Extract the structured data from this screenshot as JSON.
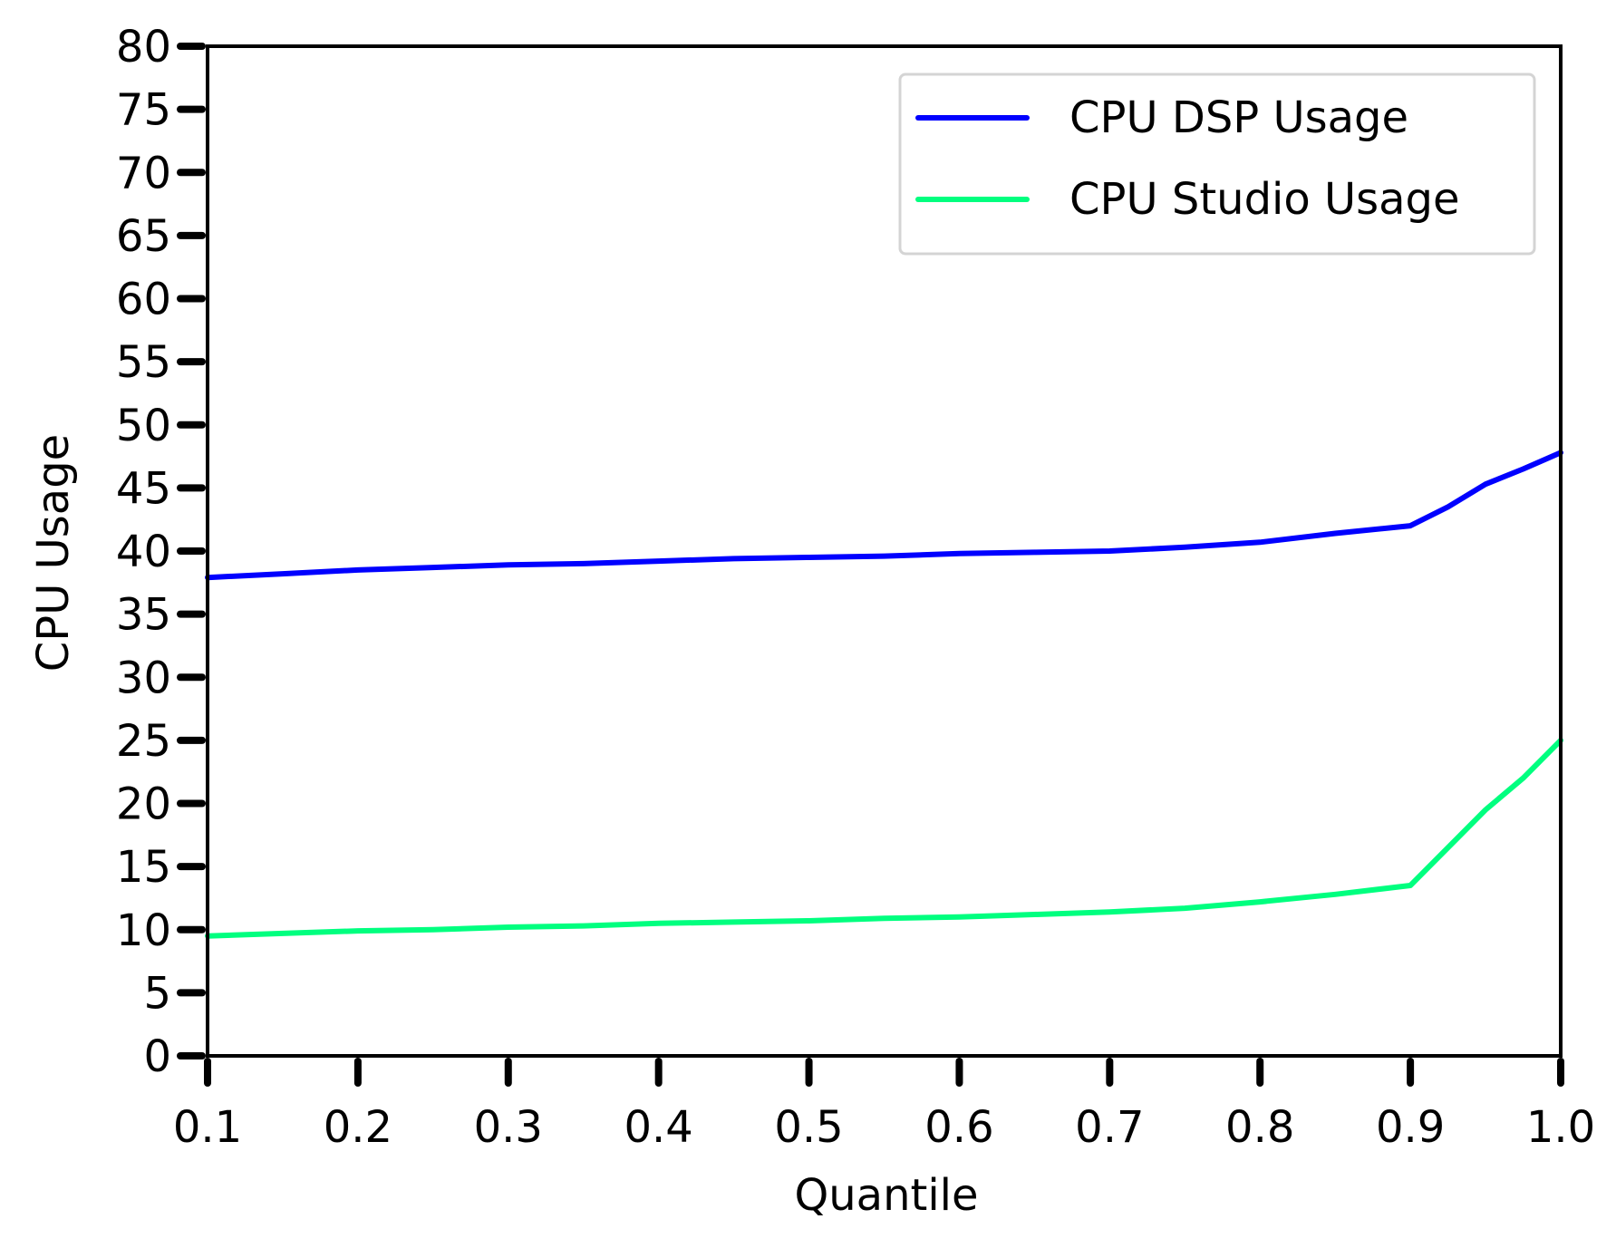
{
  "chart_data": {
    "type": "line",
    "xlabel": "Quantile",
    "ylabel": "CPU Usage",
    "xlim": [
      0.1,
      1.0
    ],
    "ylim": [
      0,
      80
    ],
    "xticks": [
      "0.1",
      "0.2",
      "0.3",
      "0.4",
      "0.5",
      "0.6",
      "0.7",
      "0.8",
      "0.9",
      "1.0"
    ],
    "yticks": [
      "0",
      "5",
      "10",
      "15",
      "20",
      "25",
      "30",
      "35",
      "40",
      "45",
      "50",
      "55",
      "60",
      "65",
      "70",
      "75",
      "80"
    ],
    "x": [
      0.1,
      0.15,
      0.2,
      0.25,
      0.3,
      0.35,
      0.4,
      0.45,
      0.5,
      0.55,
      0.6,
      0.65,
      0.7,
      0.75,
      0.8,
      0.85,
      0.9,
      0.925,
      0.95,
      0.975,
      1.0
    ],
    "series": [
      {
        "name": "CPU DSP Usage",
        "color": "#0000ff",
        "values": [
          37.9,
          38.2,
          38.5,
          38.7,
          38.9,
          39.0,
          39.2,
          39.4,
          39.5,
          39.6,
          39.8,
          39.9,
          40.0,
          40.3,
          40.7,
          41.4,
          42.0,
          43.5,
          45.3,
          46.5,
          47.8
        ]
      },
      {
        "name": "CPU Studio Usage",
        "color": "#00ff7f",
        "values": [
          9.5,
          9.7,
          9.9,
          10.0,
          10.2,
          10.3,
          10.5,
          10.6,
          10.7,
          10.9,
          11.0,
          11.2,
          11.4,
          11.7,
          12.2,
          12.8,
          13.5,
          16.5,
          19.5,
          22.0,
          25.0
        ]
      }
    ],
    "legend_position": "top-right",
    "grid": false
  }
}
